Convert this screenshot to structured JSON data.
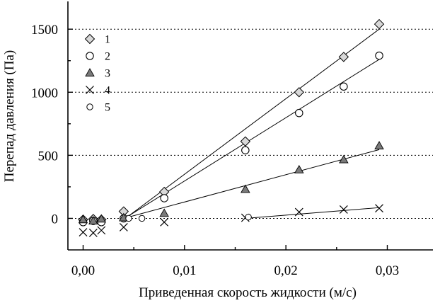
{
  "chart_data": {
    "type": "scatter",
    "xlabel": "Приведенная скорость жидкости (м/с)",
    "ylabel": "Перепад давления (Па)",
    "xlim": [
      -0.0015,
      0.0345
    ],
    "ylim": [
      -250,
      1720
    ],
    "x_ticks": [
      0.0,
      0.01,
      0.02,
      0.03
    ],
    "x_tick_labels": [
      "0,00",
      "0,01",
      "0,02",
      "0,03"
    ],
    "y_ticks": [
      0,
      500,
      1000,
      1500
    ],
    "y_tick_labels": [
      "0",
      "500",
      "1000",
      "1500"
    ],
    "grid": "horizontal dotted lines at y = 0, 500, 1000, 1500",
    "legend_placement": "top-left",
    "series": [
      {
        "name": "1",
        "marker": "diamond",
        "points": [
          [
            0.0,
            -10
          ],
          [
            0.001,
            -5
          ],
          [
            0.0018,
            -10
          ],
          [
            0.004,
            55
          ],
          [
            0.008,
            210
          ],
          [
            0.016,
            610
          ],
          [
            0.0213,
            1000
          ],
          [
            0.0257,
            1280
          ],
          [
            0.0292,
            1540
          ]
        ],
        "fit": [
          [
            0.004,
            -10
          ],
          [
            0.0292,
            1500
          ]
        ]
      },
      {
        "name": "2",
        "marker": "circle",
        "points": [
          [
            0.0,
            -30
          ],
          [
            0.001,
            -20
          ],
          [
            0.0018,
            -30
          ],
          [
            0.004,
            0
          ],
          [
            0.008,
            160
          ],
          [
            0.016,
            540
          ],
          [
            0.0213,
            835
          ],
          [
            0.0257,
            1045
          ],
          [
            0.0292,
            1290
          ]
        ],
        "fit": [
          [
            0.004,
            -5
          ],
          [
            0.0292,
            1260
          ]
        ]
      },
      {
        "name": "3",
        "marker": "triangle",
        "points": [
          [
            0.0,
            -10
          ],
          [
            0.001,
            -20
          ],
          [
            0.0018,
            -5
          ],
          [
            0.004,
            5
          ],
          [
            0.008,
            40
          ],
          [
            0.016,
            230
          ],
          [
            0.0213,
            385
          ],
          [
            0.0257,
            465
          ],
          [
            0.0292,
            575
          ]
        ],
        "fit": [
          [
            0.004,
            0
          ],
          [
            0.0292,
            545
          ]
        ]
      },
      {
        "name": "4",
        "marker": "x",
        "points": [
          [
            0.0,
            -110
          ],
          [
            0.001,
            -115
          ],
          [
            0.0018,
            -95
          ],
          [
            0.004,
            -70
          ],
          [
            0.008,
            -30
          ],
          [
            0.016,
            5
          ],
          [
            0.0213,
            50
          ],
          [
            0.0257,
            70
          ],
          [
            0.0292,
            80
          ]
        ],
        "fit": [
          [
            0.016,
            0
          ],
          [
            0.0292,
            85
          ]
        ]
      },
      {
        "name": "5",
        "marker": "small-circle",
        "points": [
          [
            0.0045,
            0
          ],
          [
            0.0058,
            0
          ],
          [
            0.0163,
            10
          ]
        ],
        "fit": []
      }
    ]
  }
}
